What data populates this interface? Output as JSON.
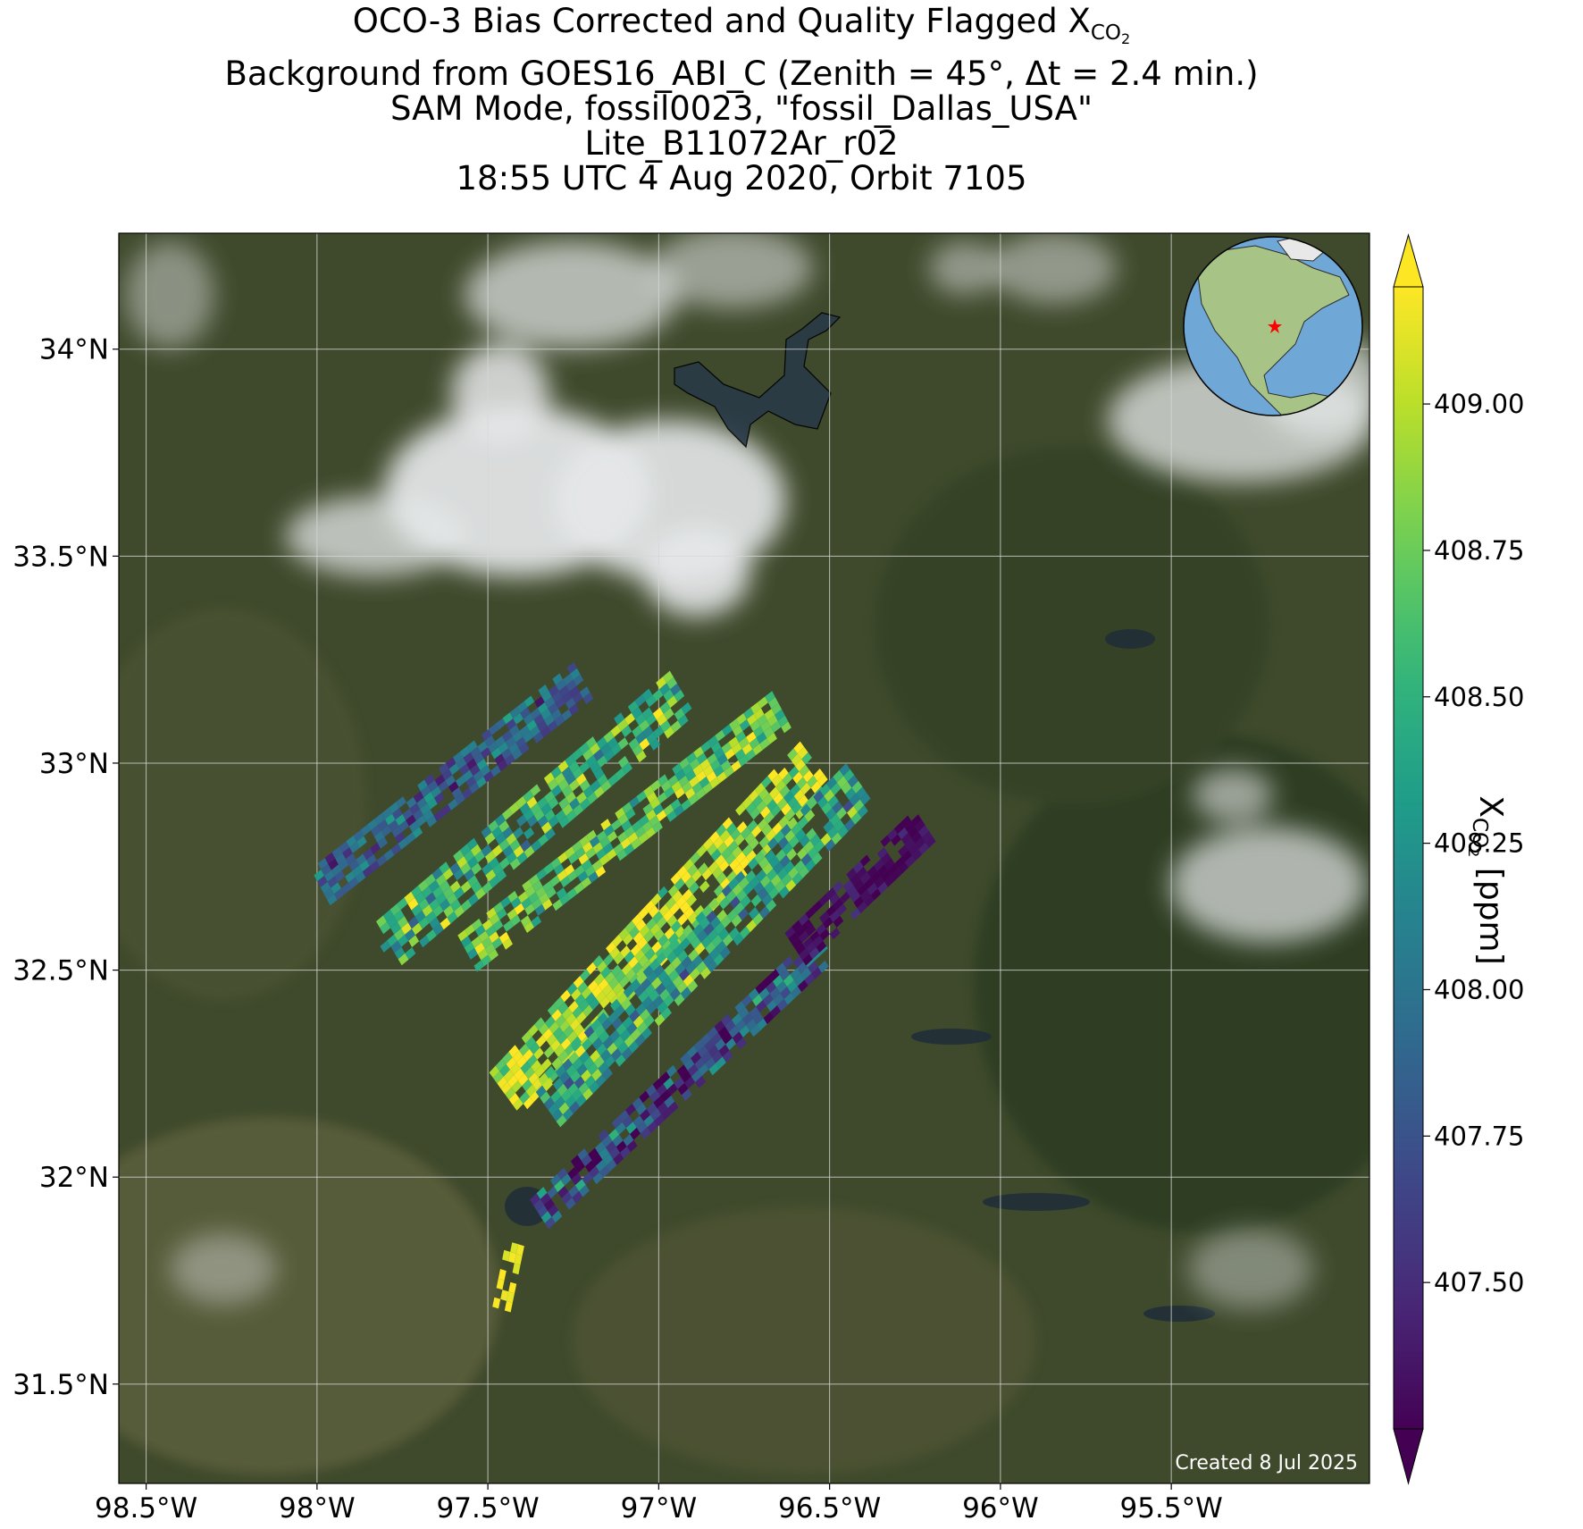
{
  "title": {
    "line1_prefix": "OCO-3 Bias Corrected and Quality Flagged X",
    "line1_sub": "CO",
    "line1_subsub": "2",
    "line2": "Background from GOES16_ABI_C (Zenith = 45°, Δt =  2.4 min.)",
    "line3": "SAM Mode, fossil0023, \"fossil_Dallas_USA\"",
    "line4": "Lite_B11072Ar_r02",
    "line5": "18:55 UTC 4 Aug 2020, Orbit 7105"
  },
  "created_note": "Created 8 Jul 2025",
  "colors": {
    "viridis": [
      "#440154",
      "#482878",
      "#3e4989",
      "#31688e",
      "#26828e",
      "#1f9e89",
      "#35b779",
      "#6ece58",
      "#b5de2b",
      "#fde725"
    ],
    "background_land": "#3f4a2c",
    "cloud": "#e6e8ea",
    "water": "#1f2d3a",
    "grid": "#d8d8d8",
    "star": "#ff0000",
    "globe_ocean": "#6fa8d6",
    "globe_land": "#a7c386"
  },
  "chart_data": {
    "type": "heatmap",
    "projection": "map",
    "xlim": [
      -98.58,
      -94.92
    ],
    "ylim": [
      31.26,
      34.28
    ],
    "x_ticks": [
      -98.5,
      -98.0,
      -97.5,
      -97.0,
      -96.5,
      -96.0,
      -95.5
    ],
    "x_tick_labels": [
      "98.5°W",
      "98°W",
      "97.5°W",
      "97°W",
      "96.5°W",
      "96°W",
      "95.5°W"
    ],
    "y_ticks": [
      31.5,
      32.0,
      32.5,
      33.0,
      33.5,
      34.0
    ],
    "y_tick_labels": [
      "31.5°N",
      "32°N",
      "32.5°N",
      "33°N",
      "33.5°N",
      "34°N"
    ],
    "grid": true,
    "colorbar": {
      "label": "X",
      "label_sub": "CO",
      "label_subsub": "2",
      "label_suffix": " [ppm]",
      "vmin": 407.25,
      "vmax": 409.2,
      "extend": "both",
      "colormap": "viridis",
      "ticks": [
        407.5,
        407.75,
        408.0,
        408.25,
        408.5,
        408.75,
        409.0
      ],
      "tick_labels": [
        "407.50",
        "407.75",
        "408.00",
        "408.25",
        "408.50",
        "408.75",
        "409.00"
      ]
    },
    "inset": "globe-locator",
    "target_location": {
      "lon": -96.8,
      "lat": 32.8
    },
    "swaths": [
      {
        "start": [
          -97.99,
          32.7
        ],
        "end": [
          -97.22,
          33.2
        ],
        "width": 0.105,
        "mean": 407.85,
        "spread": 0.35
      },
      {
        "start": [
          -97.81,
          32.55
        ],
        "end": [
          -96.93,
          33.17
        ],
        "width": 0.13,
        "mean": 408.55,
        "spread": 0.45
      },
      {
        "start": [
          -97.56,
          32.54
        ],
        "end": [
          -96.64,
          33.13
        ],
        "width": 0.105,
        "mean": 408.7,
        "spread": 0.4
      },
      {
        "start": [
          -97.45,
          32.2
        ],
        "end": [
          -96.54,
          33.0
        ],
        "width": 0.14,
        "mean": 408.95,
        "spread": 0.4
      },
      {
        "start": [
          -97.33,
          32.17
        ],
        "end": [
          -96.41,
          32.95
        ],
        "width": 0.13,
        "mean": 408.45,
        "spread": 0.5
      },
      {
        "start": [
          -97.35,
          31.91
        ],
        "end": [
          -96.51,
          32.56
        ],
        "width": 0.09,
        "mean": 407.7,
        "spread": 0.55
      },
      {
        "start": [
          -97.46,
          31.68
        ],
        "end": [
          -97.42,
          31.84
        ],
        "width": 0.055,
        "mean": 409.15,
        "spread": 0.05
      },
      {
        "start": [
          -96.6,
          32.55
        ],
        "end": [
          -96.22,
          32.85
        ],
        "width": 0.1,
        "mean": 407.3,
        "spread": 0.15
      }
    ]
  }
}
